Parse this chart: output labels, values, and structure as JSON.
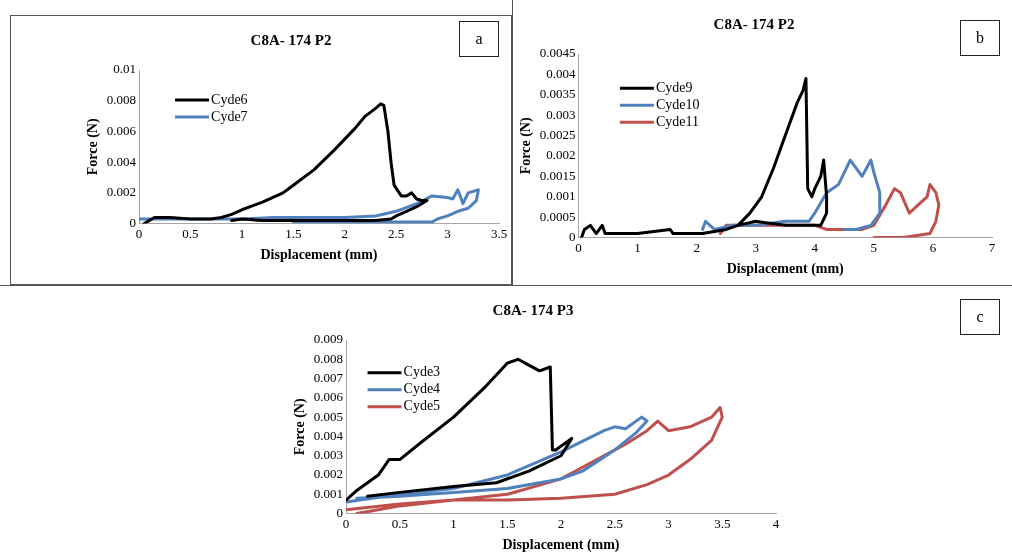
{
  "chart_data": [
    {
      "type": "line",
      "title": "C8A- 174 P2",
      "xlabel": "Displacement (mm)",
      "ylabel": "Force (N)",
      "annotations": [
        "a"
      ],
      "legend": "top left",
      "marker": "none",
      "line_style": "solid",
      "xlim": [
        0,
        3.5
      ],
      "ylim": [
        0,
        0.01
      ],
      "xticks": [
        0,
        0.5,
        1,
        1.5,
        2,
        2.5,
        3,
        3.5
      ],
      "yticks": [
        0,
        0.002,
        0.004,
        0.006,
        0.008,
        0.01
      ],
      "series": [
        {
          "name": "Cyde6",
          "color": "#000000",
          "x": [
            0.05,
            0.1,
            0.15,
            0.3,
            0.5,
            0.7,
            0.8,
            0.9,
            1.0,
            1.2,
            1.4,
            1.5,
            1.7,
            1.9,
            2.0,
            2.1,
            2.2,
            2.3,
            2.35,
            2.38,
            2.42,
            2.45,
            2.48,
            2.55,
            2.6,
            2.65,
            2.7,
            2.75,
            2.8,
            2.7,
            2.6,
            2.5,
            2.45,
            2.3,
            2.0,
            1.5,
            1.2,
            1.0,
            0.9
          ],
          "values": [
            0,
            0.0002,
            0.0004,
            0.0004,
            0.0003,
            0.0003,
            0.0004,
            0.0006,
            0.0009,
            0.0014,
            0.002,
            0.0025,
            0.0035,
            0.0048,
            0.0055,
            0.0062,
            0.007,
            0.0075,
            0.0078,
            0.0077,
            0.006,
            0.004,
            0.0025,
            0.0018,
            0.0018,
            0.002,
            0.0016,
            0.0015,
            0.0015,
            0.0011,
            0.0008,
            0.0005,
            0.0003,
            0.0002,
            0.0002,
            0.0002,
            0.0002,
            0.0003,
            0.0002
          ]
        },
        {
          "name": "Cyde7",
          "color": "#4f81bd",
          "x": [
            0,
            0.5,
            1.0,
            1.3,
            1.8,
            2.0,
            2.3,
            2.5,
            2.7,
            2.85,
            3.0,
            3.05,
            3.1,
            3.15,
            3.2,
            3.25,
            3.3,
            3.28,
            3.2,
            3.1,
            3.0,
            2.9,
            2.85,
            2.7,
            2.5,
            2.0,
            1.5
          ],
          "values": [
            0.0003,
            0.0003,
            0.0003,
            0.0004,
            0.0004,
            0.0004,
            0.0005,
            0.0008,
            0.0013,
            0.0018,
            0.0017,
            0.0016,
            0.0022,
            0.0013,
            0.002,
            0.0021,
            0.0022,
            0.0015,
            0.001,
            0.0008,
            0.0005,
            0.0003,
            0.0001,
            0.0001,
            0.0001,
            0.0001,
            0.0001
          ]
        }
      ]
    },
    {
      "type": "line",
      "title": "C8A- 174 P2",
      "xlabel": "Displacement (mm)",
      "ylabel": "Force (N)",
      "annotations": [
        "b"
      ],
      "legend": "top left",
      "marker": "none",
      "line_style": "solid",
      "xlim": [
        0,
        7
      ],
      "ylim": [
        0,
        0.0045
      ],
      "xticks": [
        0,
        1,
        2,
        3,
        4,
        5,
        6,
        7
      ],
      "yticks": [
        0,
        0.0005,
        0.001,
        0.0015,
        0.002,
        0.0025,
        0.003,
        0.0035,
        0.004,
        0.0045
      ],
      "series": [
        {
          "name": "Cyde9",
          "color": "#000000",
          "x": [
            0.05,
            0.1,
            0.2,
            0.3,
            0.4,
            0.45,
            1.0,
            1.55,
            1.6,
            2.1,
            2.5,
            2.7,
            2.9,
            3.1,
            3.3,
            3.5,
            3.7,
            3.8,
            3.85,
            3.88,
            3.95,
            4.0,
            4.1,
            4.15,
            4.2,
            4.2,
            4.1,
            3.9,
            3.5,
            3.0,
            2.7
          ],
          "values": [
            0,
            0.0002,
            0.0003,
            0.0001,
            0.0003,
            0.0001,
            0.0001,
            0.0002,
            0.0001,
            0.0001,
            0.0002,
            0.0003,
            0.0006,
            0.001,
            0.0017,
            0.0025,
            0.0033,
            0.0036,
            0.0039,
            0.0012,
            0.001,
            0.0012,
            0.0015,
            0.0019,
            0.001,
            0.0006,
            0.0003,
            0.0003,
            0.0003,
            0.0004,
            0.0003
          ]
        },
        {
          "name": "Cyde10",
          "color": "#4f81bd",
          "x": [
            2.1,
            2.15,
            2.3,
            2.6,
            3.0,
            3.5,
            3.9,
            4.0,
            4.2,
            4.4,
            4.6,
            4.7,
            4.8,
            4.95,
            5.0,
            5.1,
            5.1,
            4.95,
            4.7,
            4.5
          ],
          "values": [
            0.0002,
            0.0004,
            0.0002,
            0.0003,
            0.0003,
            0.0004,
            0.0004,
            0.0006,
            0.0011,
            0.0013,
            0.0019,
            0.0017,
            0.0015,
            0.0019,
            0.0016,
            0.0011,
            0.0006,
            0.0003,
            0.0002,
            0.0002
          ]
        },
        {
          "name": "Cyde11",
          "color": "#c0504d",
          "x": [
            2.4,
            2.5,
            3.0,
            3.5,
            4.0,
            4.2,
            4.8,
            5.0,
            5.2,
            5.35,
            5.45,
            5.6,
            5.75,
            5.9,
            5.95,
            6.05,
            6.1,
            6.05,
            5.95,
            5.5,
            5.0
          ],
          "values": [
            0.0001,
            0.0003,
            0.0003,
            0.0003,
            0.0003,
            0.0002,
            0.0002,
            0.0003,
            0.0008,
            0.0012,
            0.0011,
            0.0006,
            0.0008,
            0.001,
            0.0013,
            0.0011,
            0.0008,
            0.0004,
            0.0001,
            0,
            0
          ]
        }
      ]
    },
    {
      "type": "line",
      "title": "C8A- 174 P3",
      "xlabel": "Displacement (mm)",
      "ylabel": "Force (N)",
      "annotations": [
        "c"
      ],
      "legend": "top left",
      "marker": "none",
      "line_style": "solid",
      "xlim": [
        0,
        4
      ],
      "ylim": [
        0,
        0.009
      ],
      "xticks": [
        0,
        0.5,
        1,
        1.5,
        2,
        2.5,
        3,
        3.5,
        4
      ],
      "yticks": [
        0,
        0.001,
        0.002,
        0.003,
        0.004,
        0.005,
        0.006,
        0.007,
        0.008,
        0.009
      ],
      "series": [
        {
          "name": "Cyde3",
          "color": "#000000",
          "x": [
            0,
            0.1,
            0.3,
            0.4,
            0.5,
            0.7,
            1.0,
            1.3,
            1.5,
            1.6,
            1.7,
            1.8,
            1.9,
            1.92,
            1.95,
            2.1,
            2.0,
            1.7,
            1.4,
            1.0,
            0.5,
            0.2
          ],
          "values": [
            0.0007,
            0.0012,
            0.002,
            0.0028,
            0.0028,
            0.0037,
            0.005,
            0.0066,
            0.0078,
            0.008,
            0.0077,
            0.0074,
            0.0076,
            0.0033,
            0.0033,
            0.0039,
            0.003,
            0.0022,
            0.0016,
            0.0014,
            0.0011,
            0.0009
          ]
        },
        {
          "name": "Cyde4",
          "color": "#4f81bd",
          "x": [
            0,
            0.5,
            1.0,
            1.5,
            2.0,
            2.4,
            2.5,
            2.6,
            2.75,
            2.8,
            2.7,
            2.5,
            2.2,
            2.0,
            1.5,
            1.0,
            0.5,
            0.1
          ],
          "values": [
            0.0006,
            0.001,
            0.0013,
            0.002,
            0.0032,
            0.0043,
            0.0045,
            0.0044,
            0.005,
            0.0048,
            0.0042,
            0.0033,
            0.0022,
            0.0018,
            0.0013,
            0.0011,
            0.0009,
            0.0008
          ]
        },
        {
          "name": "Cyde5",
          "color": "#c0504d",
          "x": [
            0,
            0.5,
            1.0,
            1.5,
            2.0,
            2.3,
            2.6,
            2.8,
            2.9,
            3.0,
            3.2,
            3.4,
            3.48,
            3.5,
            3.4,
            3.2,
            3.0,
            2.8,
            2.5,
            2.0,
            1.5,
            1.0,
            0.5,
            0.1
          ],
          "values": [
            0.0002,
            0.0005,
            0.0007,
            0.001,
            0.0018,
            0.0027,
            0.0036,
            0.0043,
            0.0048,
            0.0043,
            0.0045,
            0.005,
            0.0055,
            0.005,
            0.0038,
            0.0028,
            0.002,
            0.0015,
            0.001,
            0.0008,
            0.0007,
            0.0007,
            0.0004,
            0
          ]
        }
      ]
    }
  ]
}
